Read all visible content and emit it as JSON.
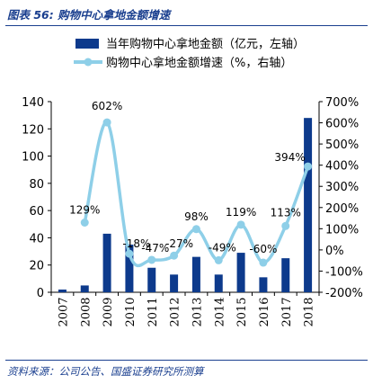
{
  "figure": {
    "title": "图表 56:  购物中心拿地金额增速",
    "source": "资料来源：公司公告、国盛证券研究所测算"
  },
  "chart_data": {
    "type": "bar",
    "categories": [
      "2007",
      "2008",
      "2009",
      "2010",
      "2011",
      "2012",
      "2013",
      "2014",
      "2015",
      "2016",
      "2017",
      "2018"
    ],
    "series": [
      {
        "name": "当年购物中心拿地金额（亿元，左轴）",
        "type": "bar",
        "axis": "left",
        "color": "#0d3a8c",
        "values": [
          2,
          5,
          43,
          35,
          18,
          13,
          26,
          13,
          29,
          11,
          25,
          128
        ]
      },
      {
        "name": "购物中心拿地金额增速（%，右轴）",
        "type": "line",
        "axis": "right",
        "color": "#8ecfe8",
        "values": [
          null,
          129,
          602,
          -18,
          -47,
          -27,
          98,
          -49,
          119,
          -60,
          113,
          394
        ],
        "labels": [
          "",
          "129%",
          "602%",
          "-18%",
          "-47%",
          "-27%",
          "98%",
          "-49%",
          "119%",
          "-60%",
          "113%",
          "394%"
        ]
      }
    ],
    "y_left": {
      "ylim": [
        0,
        140
      ],
      "ticks": [
        "0",
        "20",
        "40",
        "60",
        "80",
        "100",
        "120",
        "140"
      ]
    },
    "y_right": {
      "ylim": [
        -200,
        700
      ],
      "ticks": [
        "-200%",
        "-100%",
        "0%",
        "100%",
        "200%",
        "300%",
        "400%",
        "500%",
        "600%",
        "700%"
      ]
    },
    "legend": "top",
    "grid": false
  }
}
